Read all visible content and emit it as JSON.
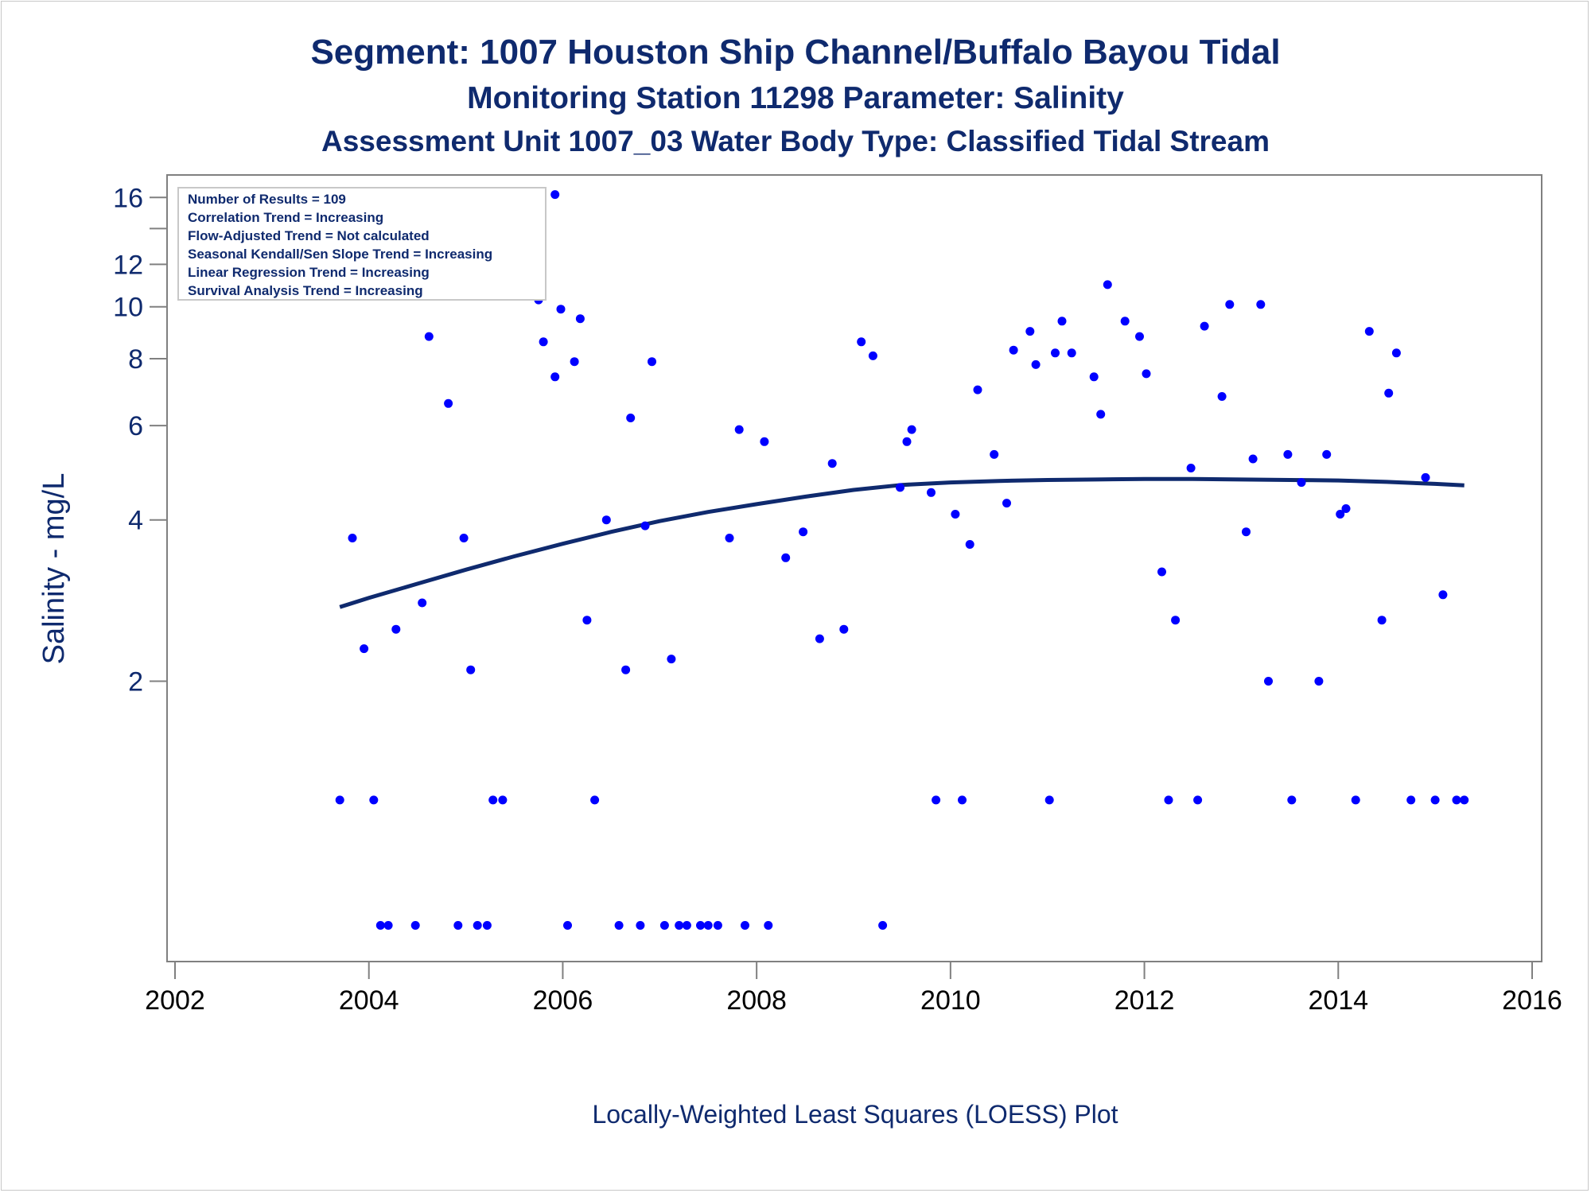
{
  "titles": {
    "line1": "Segment: 1007  Houston Ship Channel/Buffalo Bayou Tidal",
    "line2": "Monitoring Station 11298 Parameter: Salinity",
    "line3": "Assessment Unit 1007_03   Water Body Type: Classified Tidal Stream"
  },
  "footnote": "Locally-Weighted Least Squares (LOESS) Plot",
  "stats_box": [
    "Number of Results = 109",
    "Correlation Trend = Increasing",
    "Flow-Adjusted Trend = Not calculated",
    "Seasonal Kendall/Sen Slope Trend = Increasing",
    "Linear Regression Trend = Increasing",
    "Survival Analysis Trend = Increasing"
  ],
  "colors": {
    "title": "#0f2a6e",
    "points": "#0000ff",
    "loess": "#0f2a6e",
    "axis": "#808080"
  },
  "chart_data": {
    "type": "scatter",
    "title": "Segment: 1007  Houston Ship Channel/Buffalo Bayou Tidal",
    "ylabel": "Salinity - mg/L",
    "xlabel": "",
    "x_unit": "year",
    "y_scale": "log",
    "xlim": [
      2002,
      2016
    ],
    "ylim": [
      0.62,
      16.8
    ],
    "x_ticks": [
      2002,
      2004,
      2006,
      2008,
      2010,
      2012,
      2014,
      2016
    ],
    "y_ticks": [
      2,
      4,
      6,
      8,
      10,
      12,
      16
    ],
    "y_minor_ticks": [
      14
    ],
    "grid": false,
    "legend": "top-left",
    "points": [
      [
        2003.7,
        1.2
      ],
      [
        2003.83,
        3.7
      ],
      [
        2003.95,
        2.3
      ],
      [
        2004.05,
        1.2
      ],
      [
        2004.12,
        0.7
      ],
      [
        2004.2,
        0.7
      ],
      [
        2004.28,
        2.5
      ],
      [
        2004.48,
        0.7
      ],
      [
        2004.55,
        2.8
      ],
      [
        2004.62,
        8.8
      ],
      [
        2004.82,
        6.6
      ],
      [
        2004.92,
        0.7
      ],
      [
        2004.98,
        3.7
      ],
      [
        2005.05,
        2.1
      ],
      [
        2005.12,
        0.7
      ],
      [
        2005.22,
        0.7
      ],
      [
        2005.28,
        1.2
      ],
      [
        2005.38,
        1.2
      ],
      [
        2005.75,
        10.3
      ],
      [
        2005.8,
        8.6
      ],
      [
        2005.92,
        7.4
      ],
      [
        2005.92,
        16.2
      ],
      [
        2005.98,
        9.9
      ],
      [
        2006.05,
        0.7
      ],
      [
        2006.12,
        7.9
      ],
      [
        2006.18,
        9.5
      ],
      [
        2006.25,
        2.6
      ],
      [
        2006.33,
        1.2
      ],
      [
        2006.45,
        4.0
      ],
      [
        2006.58,
        0.7
      ],
      [
        2006.65,
        2.1
      ],
      [
        2006.7,
        6.2
      ],
      [
        2006.8,
        0.7
      ],
      [
        2006.85,
        3.9
      ],
      [
        2006.92,
        7.9
      ],
      [
        2007.05,
        0.7
      ],
      [
        2007.12,
        2.2
      ],
      [
        2007.2,
        0.7
      ],
      [
        2007.28,
        0.7
      ],
      [
        2007.42,
        0.7
      ],
      [
        2007.5,
        0.7
      ],
      [
        2007.6,
        0.7
      ],
      [
        2007.72,
        3.7
      ],
      [
        2007.82,
        5.9
      ],
      [
        2007.88,
        0.7
      ],
      [
        2008.08,
        5.6
      ],
      [
        2008.12,
        0.7
      ],
      [
        2008.3,
        3.4
      ],
      [
        2008.48,
        3.8
      ],
      [
        2008.65,
        2.4
      ],
      [
        2008.78,
        5.1
      ],
      [
        2008.9,
        2.5
      ],
      [
        2009.08,
        8.6
      ],
      [
        2009.2,
        8.1
      ],
      [
        2009.3,
        0.7
      ],
      [
        2009.48,
        4.6
      ],
      [
        2009.55,
        5.6
      ],
      [
        2009.6,
        5.9
      ],
      [
        2009.8,
        4.5
      ],
      [
        2009.85,
        1.2
      ],
      [
        2010.05,
        4.1
      ],
      [
        2010.12,
        1.2
      ],
      [
        2010.2,
        3.6
      ],
      [
        2010.28,
        7.0
      ],
      [
        2010.45,
        5.3
      ],
      [
        2010.58,
        4.3
      ],
      [
        2010.65,
        8.3
      ],
      [
        2010.82,
        9.0
      ],
      [
        2010.88,
        7.8
      ],
      [
        2011.02,
        1.2
      ],
      [
        2011.08,
        8.2
      ],
      [
        2011.15,
        9.4
      ],
      [
        2011.25,
        8.2
      ],
      [
        2011.48,
        7.4
      ],
      [
        2011.55,
        6.3
      ],
      [
        2011.62,
        11.0
      ],
      [
        2011.8,
        9.4
      ],
      [
        2011.95,
        8.8
      ],
      [
        2012.02,
        7.5
      ],
      [
        2012.18,
        3.2
      ],
      [
        2012.25,
        1.2
      ],
      [
        2012.32,
        2.6
      ],
      [
        2012.48,
        5.0
      ],
      [
        2012.55,
        1.2
      ],
      [
        2012.62,
        9.2
      ],
      [
        2012.8,
        6.8
      ],
      [
        2012.88,
        10.1
      ],
      [
        2013.05,
        3.8
      ],
      [
        2013.12,
        5.2
      ],
      [
        2013.2,
        10.1
      ],
      [
        2013.28,
        2.0
      ],
      [
        2013.48,
        5.3
      ],
      [
        2013.52,
        1.2
      ],
      [
        2013.62,
        4.7
      ],
      [
        2013.8,
        2.0
      ],
      [
        2013.88,
        5.3
      ],
      [
        2014.02,
        4.1
      ],
      [
        2014.08,
        4.2
      ],
      [
        2014.18,
        1.2
      ],
      [
        2014.32,
        9.0
      ],
      [
        2014.45,
        2.6
      ],
      [
        2014.52,
        6.9
      ],
      [
        2014.6,
        8.2
      ],
      [
        2014.75,
        1.2
      ],
      [
        2014.9,
        4.8
      ],
      [
        2015.0,
        1.2
      ],
      [
        2015.08,
        2.9
      ],
      [
        2015.22,
        1.2
      ],
      [
        2015.3,
        1.2
      ]
    ],
    "loess_line": [
      [
        2003.7,
        2.75
      ],
      [
        2004.0,
        2.86
      ],
      [
        2004.5,
        3.04
      ],
      [
        2005.0,
        3.23
      ],
      [
        2005.5,
        3.42
      ],
      [
        2006.0,
        3.61
      ],
      [
        2006.5,
        3.8
      ],
      [
        2007.0,
        3.98
      ],
      [
        2007.5,
        4.14
      ],
      [
        2008.0,
        4.28
      ],
      [
        2008.5,
        4.42
      ],
      [
        2009.0,
        4.55
      ],
      [
        2009.5,
        4.65
      ],
      [
        2010.0,
        4.7
      ],
      [
        2010.5,
        4.73
      ],
      [
        2011.0,
        4.75
      ],
      [
        2011.5,
        4.76
      ],
      [
        2012.0,
        4.77
      ],
      [
        2012.5,
        4.77
      ],
      [
        2013.0,
        4.76
      ],
      [
        2013.5,
        4.75
      ],
      [
        2014.0,
        4.74
      ],
      [
        2014.5,
        4.71
      ],
      [
        2015.0,
        4.67
      ],
      [
        2015.3,
        4.64
      ]
    ]
  }
}
